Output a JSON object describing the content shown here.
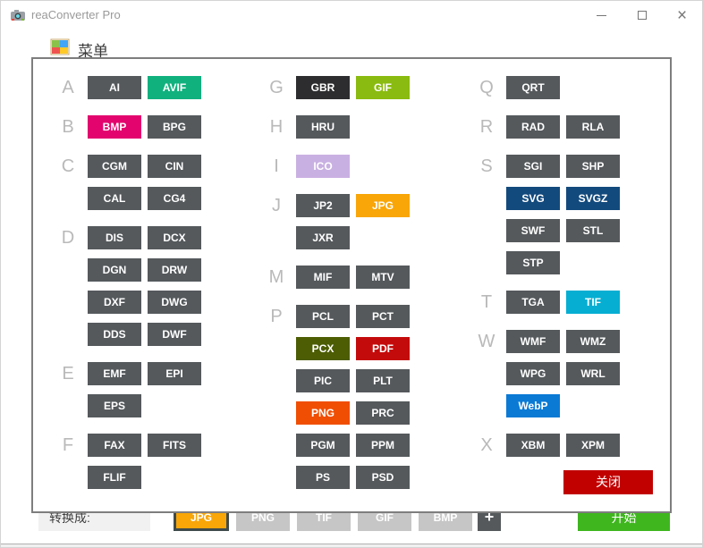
{
  "window": {
    "title": "reaConverter Pro",
    "menu_label": "菜单"
  },
  "dialog": {
    "close_label": "关闭",
    "columns": [
      {
        "groups": [
          {
            "letter": "A",
            "formats": [
              {
                "label": "AI"
              },
              {
                "label": "AVIF",
                "color": "#11b17e"
              }
            ]
          },
          {
            "letter": "B",
            "formats": [
              {
                "label": "BMP",
                "color": "#e3046e"
              },
              {
                "label": "BPG"
              }
            ]
          },
          {
            "letter": "C",
            "formats": [
              {
                "label": "CGM"
              },
              {
                "label": "CIN"
              },
              {
                "label": "CAL"
              },
              {
                "label": "CG4"
              }
            ]
          },
          {
            "letter": "D",
            "formats": [
              {
                "label": "DIS"
              },
              {
                "label": "DCX"
              },
              {
                "label": "DGN"
              },
              {
                "label": "DRW"
              },
              {
                "label": "DXF"
              },
              {
                "label": "DWG"
              },
              {
                "label": "DDS"
              },
              {
                "label": "DWF"
              }
            ]
          },
          {
            "letter": "E",
            "formats": [
              {
                "label": "EMF"
              },
              {
                "label": "EPI"
              },
              {
                "label": "EPS"
              }
            ]
          },
          {
            "letter": "F",
            "formats": [
              {
                "label": "FAX"
              },
              {
                "label": "FITS"
              },
              {
                "label": "FLIF"
              }
            ]
          }
        ]
      },
      {
        "groups": [
          {
            "letter": "G",
            "formats": [
              {
                "label": "GBR",
                "color": "#2d2d2f"
              },
              {
                "label": "GIF",
                "color": "#8abb10"
              }
            ]
          },
          {
            "letter": "H",
            "formats": [
              {
                "label": "HRU"
              }
            ]
          },
          {
            "letter": "I",
            "formats": [
              {
                "label": "ICO",
                "color": "#c9b0e2"
              }
            ]
          },
          {
            "letter": "J",
            "formats": [
              {
                "label": "JP2"
              },
              {
                "label": "JPG",
                "color": "#f8a608"
              },
              {
                "label": "JXR"
              }
            ]
          },
          {
            "letter": "M",
            "formats": [
              {
                "label": "MIF"
              },
              {
                "label": "MTV"
              }
            ]
          },
          {
            "letter": "P",
            "formats": [
              {
                "label": "PCL"
              },
              {
                "label": "PCT"
              },
              {
                "label": "PCX",
                "color": "#4c5d03"
              },
              {
                "label": "PDF",
                "color": "#c40b0b"
              },
              {
                "label": "PIC"
              },
              {
                "label": "PLT"
              },
              {
                "label": "PNG",
                "color": "#f04e02"
              },
              {
                "label": "PRC"
              },
              {
                "label": "PGM"
              },
              {
                "label": "PPM"
              },
              {
                "label": "PS"
              },
              {
                "label": "PSD"
              }
            ]
          }
        ]
      },
      {
        "groups": [
          {
            "letter": "Q",
            "formats": [
              {
                "label": "QRT"
              }
            ]
          },
          {
            "letter": "R",
            "formats": [
              {
                "label": "RAD"
              },
              {
                "label": "RLA"
              }
            ]
          },
          {
            "letter": "S",
            "formats": [
              {
                "label": "SGI"
              },
              {
                "label": "SHP"
              },
              {
                "label": "SVG",
                "color": "#134a7d"
              },
              {
                "label": "SVGZ",
                "color": "#134a7d"
              },
              {
                "label": "SWF"
              },
              {
                "label": "STL"
              },
              {
                "label": "STP"
              }
            ]
          },
          {
            "letter": "T",
            "formats": [
              {
                "label": "TGA"
              },
              {
                "label": "TIF",
                "color": "#06aed2"
              }
            ]
          },
          {
            "letter": "W",
            "formats": [
              {
                "label": "WMF"
              },
              {
                "label": "WMZ"
              },
              {
                "label": "WPG"
              },
              {
                "label": "WRL"
              },
              {
                "label": "WebP",
                "color": "#0a7ad5"
              }
            ]
          },
          {
            "letter": "X",
            "formats": [
              {
                "label": "XBM"
              },
              {
                "label": "XPM"
              }
            ]
          }
        ]
      }
    ]
  },
  "toolbar": {
    "convert_label": "转换成:",
    "formats": [
      {
        "label": "JPG",
        "selected": true
      },
      {
        "label": "PNG"
      },
      {
        "label": "TIF"
      },
      {
        "label": "GIF"
      },
      {
        "label": "BMP"
      }
    ],
    "add_label": "+",
    "start_label": "开始"
  },
  "colors": {
    "format_default": "#55595c",
    "close_button": "#c10000",
    "start_button": "#3fb61e",
    "selected_format": "#f8a608",
    "inactive_format": "#c6c6c6"
  }
}
